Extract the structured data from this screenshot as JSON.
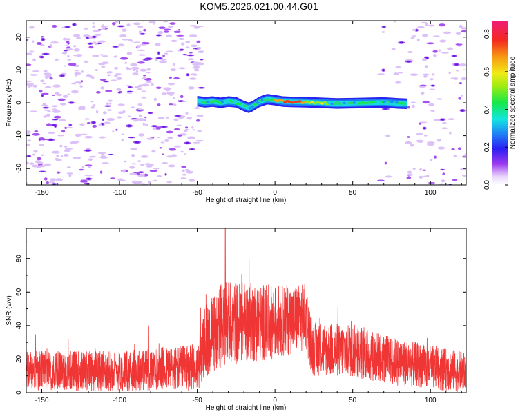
{
  "title": "KOM5.2026.021.00.44.G01",
  "chart_data": [
    {
      "type": "heatmap",
      "name": "spectrogram",
      "xlabel": "Height of straight line (km)",
      "ylabel": "Frequency (Hz)",
      "xlim": [
        -160,
        123
      ],
      "ylim": [
        -25,
        25
      ],
      "xticks": [
        -150,
        -100,
        -50,
        0,
        50,
        100
      ],
      "yticks": [
        -20,
        -10,
        0,
        10,
        20
      ],
      "signal_track": [
        {
          "x": -50,
          "y": 0.5
        },
        {
          "x": -45,
          "y": 0.2
        },
        {
          "x": -40,
          "y": 0.4
        },
        {
          "x": -35,
          "y": 0.0
        },
        {
          "x": -30,
          "y": 0.4
        },
        {
          "x": -25,
          "y": 0.2
        },
        {
          "x": -20,
          "y": -1.0
        },
        {
          "x": -17,
          "y": -1.5
        },
        {
          "x": -15,
          "y": -1.2
        },
        {
          "x": -10,
          "y": 0.3
        },
        {
          "x": -5,
          "y": 1.1
        },
        {
          "x": 0,
          "y": 0.8
        },
        {
          "x": 5,
          "y": 0.4
        },
        {
          "x": 10,
          "y": 0.3
        },
        {
          "x": 20,
          "y": 0.2
        },
        {
          "x": 30,
          "y": 0.0
        },
        {
          "x": 40,
          "y": -0.2
        },
        {
          "x": 50,
          "y": -0.1
        },
        {
          "x": 60,
          "y": 0.0
        },
        {
          "x": 70,
          "y": 0.1
        },
        {
          "x": 80,
          "y": -0.2
        },
        {
          "x": 85,
          "y": -0.3
        }
      ],
      "peak_amplitude_region_x": [
        0,
        20
      ],
      "colorbar": {
        "label": "Normalized spectral amplitude",
        "range": [
          0.0,
          0.87
        ],
        "ticks": [
          "0.0",
          "0.2",
          "0.4",
          "0.6",
          "0.8"
        ]
      }
    },
    {
      "type": "line",
      "name": "snr",
      "xlabel": "Height of straight line (km)",
      "ylabel": "SNR (v/v)",
      "xlim": [
        -160,
        123
      ],
      "ylim": [
        0,
        98
      ],
      "xticks": [
        -150,
        -100,
        -50,
        0,
        50,
        100
      ],
      "yticks": [
        0,
        20,
        40,
        60,
        80
      ],
      "color": "#f03535",
      "envelope": [
        {
          "x": -160,
          "mean": 13,
          "spread": 12
        },
        {
          "x": -100,
          "mean": 13,
          "spread": 12
        },
        {
          "x": -50,
          "mean": 15,
          "spread": 14
        },
        {
          "x": -45,
          "mean": 30,
          "spread": 22
        },
        {
          "x": -35,
          "mean": 40,
          "spread": 25
        },
        {
          "x": -25,
          "mean": 42,
          "spread": 25
        },
        {
          "x": 0,
          "mean": 42,
          "spread": 22
        },
        {
          "x": 20,
          "mean": 45,
          "spread": 20
        },
        {
          "x": 24,
          "mean": 26,
          "spread": 16
        },
        {
          "x": 50,
          "mean": 25,
          "spread": 16
        },
        {
          "x": 80,
          "mean": 18,
          "spread": 14
        },
        {
          "x": 123,
          "mean": 12,
          "spread": 12
        }
      ],
      "peak": {
        "x": -32,
        "y": 98
      }
    }
  ]
}
